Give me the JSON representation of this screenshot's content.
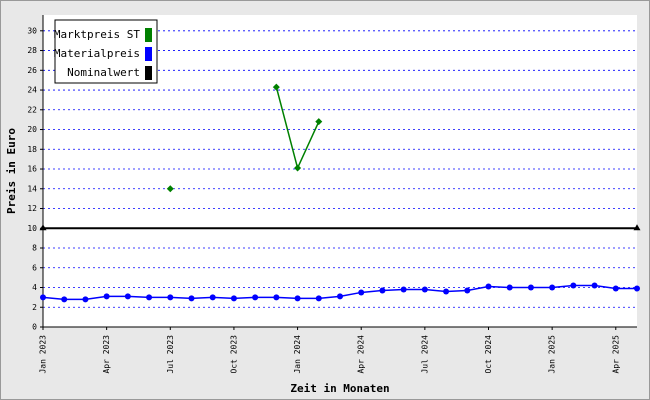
{
  "chart_data": {
    "type": "line",
    "x_label": "Zeit in Monaten",
    "y_label": "Preis in Euro",
    "categories": [
      "Jan 2023",
      null,
      null,
      "Apr 2023",
      null,
      null,
      "Jul 2023",
      null,
      null,
      "Oct 2023",
      null,
      null,
      "Jan 2024",
      null,
      null,
      "Apr 2024",
      null,
      null,
      "Jul 2024",
      null,
      null,
      "Oct 2024",
      null,
      null,
      "Jan 2025",
      null,
      null,
      "Apr 2025",
      null
    ],
    "series": [
      {
        "name": "Marktpreis ST",
        "color": "#008000",
        "marker": "diamond",
        "values": [
          null,
          null,
          null,
          null,
          null,
          null,
          14.0,
          null,
          null,
          null,
          null,
          24.3,
          16.1,
          20.8,
          null,
          null,
          null,
          null,
          null,
          null,
          null,
          null,
          null,
          null,
          null,
          null,
          null,
          null,
          null
        ]
      },
      {
        "name": "Materialpreis",
        "color": "#0000ff",
        "marker": "circle",
        "values": [
          3.0,
          2.8,
          2.8,
          3.1,
          3.1,
          3.0,
          3.0,
          2.9,
          3.0,
          2.9,
          3.0,
          3.0,
          2.9,
          2.9,
          3.1,
          3.5,
          3.7,
          3.8,
          3.8,
          3.6,
          3.7,
          4.1,
          4.0,
          4.0,
          4.0,
          4.2,
          4.2,
          3.9,
          3.9
        ]
      },
      {
        "name": "Nominalwert",
        "color": "#000000",
        "marker": "triangle-ends",
        "values": [
          10,
          10,
          10,
          10,
          10,
          10,
          10,
          10,
          10,
          10,
          10,
          10,
          10,
          10,
          10,
          10,
          10,
          10,
          10,
          10,
          10,
          10,
          10,
          10,
          10,
          10,
          10,
          10,
          10
        ]
      }
    ],
    "ylim": [
      0,
      31.6
    ],
    "yticks": [
      0,
      2,
      4,
      6,
      8,
      10,
      12,
      14,
      16,
      18,
      20,
      22,
      24,
      26,
      28,
      30
    ],
    "grid": true,
    "legend": "top-left"
  }
}
